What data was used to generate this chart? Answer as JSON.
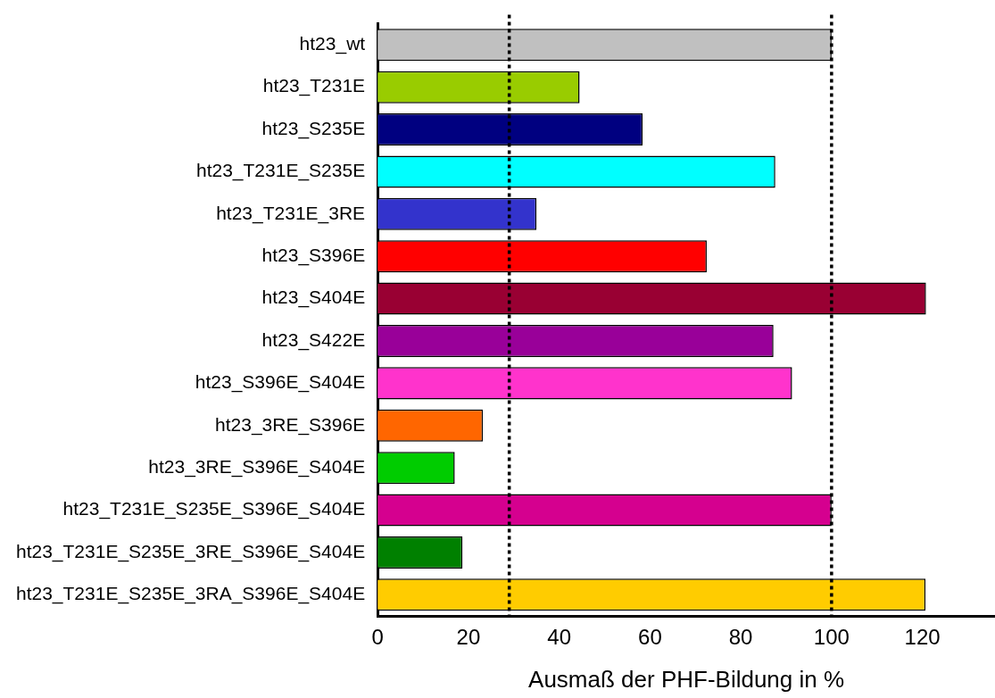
{
  "chart_data": {
    "type": "bar",
    "orientation": "horizontal",
    "xlabel": "Ausmaß der PHF-Bildung in %",
    "categories": [
      "ht23_wt",
      "ht23_T231E",
      "ht23_S235E",
      "ht23_T231E_S235E",
      "ht23_T231E_3RE",
      "ht23_S396E",
      "ht23_S404E",
      "ht23_S422E",
      "ht23_S396E_S404E",
      "ht23_3RE_S396E",
      "ht23_3RE_S396E_S404E",
      "ht23_T231E_S235E_S396E_S404E",
      "ht23_T231E_S235E_3RE_S396E_S404E",
      "ht23_T231E_S235E_3RA_S396E_S404E"
    ],
    "values": [
      100,
      44.5,
      58.4,
      87.6,
      35,
      72.5,
      120.8,
      87.2,
      91.3,
      23.2,
      17,
      100,
      18.7,
      120.7
    ],
    "colors": [
      "#c0c0c0",
      "#99cc00",
      "#000080",
      "#00ffff",
      "#3333cc",
      "#ff0000",
      "#990033",
      "#990099",
      "#ff33cc",
      "#ff6600",
      "#00cc00",
      "#d5008f",
      "#008000",
      "#ffcc00"
    ],
    "xlim": [
      0,
      136
    ],
    "xticks": [
      0,
      20,
      40,
      60,
      80,
      100,
      120
    ],
    "ref_lines": [
      {
        "axis": "x",
        "value": 29,
        "color": "#000000",
        "line_style": "dotted"
      },
      {
        "axis": "x",
        "value": 100,
        "color": "#000000",
        "line_style": "dotted"
      }
    ],
    "grid": false,
    "legend": false
  }
}
